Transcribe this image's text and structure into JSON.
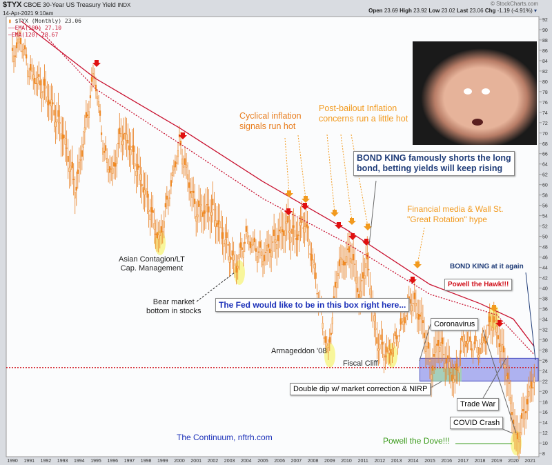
{
  "header": {
    "symbol": "$TYX",
    "name": "CBOE 30-Year US Treasury Yield",
    "exchange": "INDX",
    "datetime": "14-Apr-2021 9:10am",
    "copyright": "© StockCharts.com",
    "open_label": "Open",
    "open": "23.69",
    "high_label": "High",
    "high": "23.92",
    "low_label": "Low",
    "low": "23.02",
    "last_label": "Last",
    "last": "23.06",
    "chg_label": "Chg",
    "chg": "-1.19 (-4.91%)"
  },
  "legend": {
    "series": "$TYX (Monthly) 23.06",
    "ema100": "EMA(100) 27.10",
    "ema120": "EMA(120) 28.67"
  },
  "annotations": {
    "asian": "Asian Contagion/LT\nCap. Management",
    "bear": "Bear market\nbottom in stocks",
    "armageddon": "Armageddon '08",
    "fiscal": "Fiscal Cliff",
    "double_dip": "Double dip w/ market correction & NIRP",
    "coronavirus": "Coronavirus",
    "trade_war": "Trade War",
    "covid": "COVID Crash",
    "dove": "Powell the Dove!!!",
    "continuum": "The Continuum, nftrh.com",
    "fed_box": "The Fed would like to be in this box right here...",
    "hawk": "Powell the Hawk!!!",
    "bond_king_again": "BOND KING at it again",
    "rotation": "Financial media & Wall St.\n\"Great Rotation\" hype",
    "bond_king": "BOND KING famously shorts the long\nbond, betting yields will keep rising",
    "cyclical": "Cyclical inflation\nsignals run hot",
    "post_bailout": "Post-bailout Inflation\nconcerns run a little hot"
  },
  "colors": {
    "bars": "#f28c1e",
    "ema": "#c8102e",
    "box": "#6f74e6",
    "dove": "#3a9a1a",
    "navy": "#1f3c78",
    "orange": "#f29a1e"
  },
  "chart_data": {
    "type": "bar",
    "subtype": "ohlc-monthly",
    "x_unit": "year",
    "ylim": [
      8,
      92
    ],
    "y_axis": "right",
    "y_ticks": [
      8,
      10,
      12,
      14,
      16,
      18,
      20,
      22,
      24,
      26,
      28,
      30,
      32,
      34,
      36,
      38,
      40,
      42,
      44,
      46,
      48,
      50,
      52,
      54,
      56,
      58,
      60,
      62,
      64,
      66,
      68,
      70,
      72,
      74,
      76,
      78,
      80,
      82,
      84,
      86,
      88,
      90,
      92
    ],
    "x_ticks": [
      "1990",
      "1991",
      "1992",
      "1993",
      "1994",
      "1995",
      "1996",
      "1997",
      "1998",
      "1999",
      "2000",
      "2001",
      "2002",
      "2003",
      "2004",
      "2005",
      "2006",
      "2007",
      "2008",
      "2009",
      "2010",
      "2011",
      "2012",
      "2013",
      "2014",
      "2015",
      "2016",
      "2017",
      "2018",
      "2019",
      "2020",
      "2021"
    ],
    "grid": false,
    "series": [
      {
        "name": "$TYX (Monthly)",
        "points": [
          [
            1990,
            85
          ],
          [
            1990.5,
            88
          ],
          [
            1991,
            82
          ],
          [
            1992,
            78
          ],
          [
            1993,
            70
          ],
          [
            1993.8,
            59
          ],
          [
            1994.9,
            82
          ],
          [
            1995.5,
            66
          ],
          [
            1996,
            62
          ],
          [
            1996.5,
            70
          ],
          [
            1997,
            68
          ],
          [
            1998,
            58
          ],
          [
            1998.8,
            49
          ],
          [
            1999.5,
            60
          ],
          [
            2000,
            68
          ],
          [
            2001,
            55
          ],
          [
            2002,
            55
          ],
          [
            2003.4,
            44
          ],
          [
            2004,
            50
          ],
          [
            2005,
            46
          ],
          [
            2006.4,
            52
          ],
          [
            2007,
            50
          ],
          [
            2007.5,
            53
          ],
          [
            2008,
            45
          ],
          [
            2008.9,
            27
          ],
          [
            2009.5,
            44
          ],
          [
            2010.3,
            47
          ],
          [
            2010.8,
            38
          ],
          [
            2011.2,
            46
          ],
          [
            2011.8,
            30
          ],
          [
            2012.5,
            27
          ],
          [
            2013,
            30
          ],
          [
            2013.9,
            38
          ],
          [
            2014.5,
            34
          ],
          [
            2015.1,
            24
          ],
          [
            2015.5,
            30
          ],
          [
            2016.5,
            22
          ],
          [
            2017,
            30
          ],
          [
            2018,
            28
          ],
          [
            2018.8,
            34
          ],
          [
            2019.5,
            26
          ],
          [
            2020.2,
            10
          ],
          [
            2020.5,
            14
          ],
          [
            2021.25,
            23.06
          ]
        ]
      },
      {
        "name": "EMA(100)",
        "style": "dotted",
        "points": [
          [
            1991.5,
            90.4
          ],
          [
            1995,
            78.5
          ],
          [
            2000,
            68
          ],
          [
            2005,
            57.3
          ],
          [
            2010,
            48.7
          ],
          [
            2015,
            38.8
          ],
          [
            2019,
            34.8
          ],
          [
            2021.25,
            27.1
          ]
        ]
      },
      {
        "name": "EMA(120)",
        "style": "solid",
        "points": [
          [
            1990.5,
            91.7
          ],
          [
            1995,
            80.5
          ],
          [
            2000,
            71
          ],
          [
            2005,
            60.6
          ],
          [
            2010,
            51.3
          ],
          [
            2015,
            40.7
          ],
          [
            2018,
            37
          ],
          [
            2020,
            34
          ],
          [
            2021.25,
            28.67
          ]
        ]
      }
    ],
    "reference_line": 24.6,
    "target_box": {
      "x": [
        2014.4,
        2021.4
      ],
      "y": [
        22,
        26.4
      ]
    }
  }
}
